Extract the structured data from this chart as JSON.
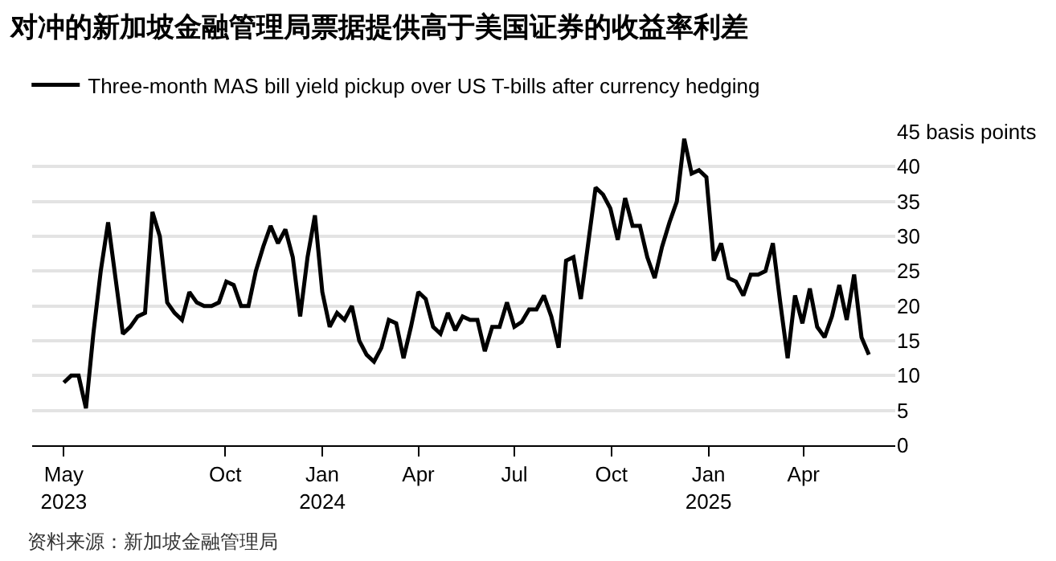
{
  "chart_data": {
    "type": "line",
    "title": "对冲的新加坡金融管理局票据提供高于美国证券的收益率利差",
    "x": [
      "2023-05-01",
      "2023-05-08",
      "2023-05-15",
      "2023-05-22",
      "2023-05-29",
      "2023-06-05",
      "2023-06-12",
      "2023-06-19",
      "2023-06-26",
      "2023-07-03",
      "2023-07-10",
      "2023-07-17",
      "2023-07-24",
      "2023-07-31",
      "2023-08-07",
      "2023-08-14",
      "2023-08-21",
      "2023-08-28",
      "2023-09-04",
      "2023-09-11",
      "2023-09-18",
      "2023-09-25",
      "2023-10-02",
      "2023-10-09",
      "2023-10-16",
      "2023-10-23",
      "2023-10-30",
      "2023-11-06",
      "2023-11-13",
      "2023-11-20",
      "2023-11-27",
      "2023-12-04",
      "2023-12-11",
      "2023-12-18",
      "2023-12-25",
      "2024-01-01",
      "2024-01-08",
      "2024-01-15",
      "2024-01-22",
      "2024-01-29",
      "2024-02-05",
      "2024-02-12",
      "2024-02-19",
      "2024-02-26",
      "2024-03-04",
      "2024-03-11",
      "2024-03-18",
      "2024-03-25",
      "2024-04-01",
      "2024-04-08",
      "2024-04-15",
      "2024-04-22",
      "2024-04-29",
      "2024-05-06",
      "2024-05-13",
      "2024-05-20",
      "2024-05-27",
      "2024-06-03",
      "2024-06-10",
      "2024-06-17",
      "2024-06-24",
      "2024-07-01",
      "2024-07-08",
      "2024-07-15",
      "2024-07-22",
      "2024-07-29",
      "2024-08-05",
      "2024-08-12",
      "2024-08-19",
      "2024-08-26",
      "2024-09-02",
      "2024-09-09",
      "2024-09-16",
      "2024-09-23",
      "2024-09-30",
      "2024-10-07",
      "2024-10-14",
      "2024-10-21",
      "2024-10-28",
      "2024-11-04",
      "2024-11-11",
      "2024-11-18",
      "2024-11-25",
      "2024-12-02",
      "2024-12-09",
      "2024-12-16",
      "2024-12-23",
      "2024-12-30",
      "2025-01-06",
      "2025-01-13",
      "2025-01-20",
      "2025-01-27",
      "2025-02-03",
      "2025-02-10",
      "2025-02-17",
      "2025-02-24",
      "2025-03-03",
      "2025-03-10",
      "2025-03-17",
      "2025-03-24",
      "2025-03-31",
      "2025-04-07",
      "2025-04-14",
      "2025-04-21",
      "2025-04-28",
      "2025-05-05",
      "2025-05-12",
      "2025-05-19",
      "2025-05-26",
      "2025-06-02"
    ],
    "series": [
      {
        "name": "Three-month MAS bill yield pickup over US T-bills after currency hedging",
        "color": "#000000",
        "values": [
          9,
          10,
          10,
          5.3,
          16,
          25,
          32,
          24,
          16,
          17,
          18.5,
          19,
          33.5,
          30,
          20.5,
          19,
          18,
          22,
          20.5,
          20,
          20,
          20.5,
          23.5,
          23,
          20,
          20,
          25,
          28.5,
          31.5,
          29,
          31,
          27,
          18.5,
          27,
          33,
          22,
          17,
          19,
          18,
          20,
          15,
          13,
          12,
          14,
          18,
          17.5,
          12.5,
          17,
          22,
          21,
          17,
          16,
          19,
          16.5,
          18.5,
          18,
          18,
          13.5,
          17,
          17,
          20.5,
          17,
          17.7,
          19.5,
          19.5,
          21.5,
          18.5,
          14,
          26.5,
          27,
          21,
          29,
          37,
          36,
          34,
          29.5,
          35.5,
          31.5,
          31.5,
          27,
          24,
          28.5,
          32,
          35,
          44,
          39,
          39.5,
          38.5,
          26.5,
          29,
          24,
          23.5,
          21.5,
          24.5,
          24.5,
          25,
          29,
          20.5,
          12.5,
          21.5,
          17.5,
          22.5,
          17,
          15.5,
          18.5,
          23,
          18,
          24.5,
          15.5,
          13
        ]
      }
    ],
    "xlim": [
      "2023-04-01",
      "2025-06-27"
    ],
    "xticks": [
      {
        "value": "2023-05-01",
        "label": "May\n2023"
      },
      {
        "value": "2023-10-01",
        "label": "Oct"
      },
      {
        "value": "2024-01-01",
        "label": "Jan\n2024"
      },
      {
        "value": "2024-04-01",
        "label": "Apr"
      },
      {
        "value": "2024-07-01",
        "label": "Jul"
      },
      {
        "value": "2024-10-01",
        "label": "Oct"
      },
      {
        "value": "2025-01-01",
        "label": "Jan\n2025"
      },
      {
        "value": "2025-04-01",
        "label": "Apr"
      }
    ],
    "ylim": [
      0,
      45
    ],
    "yticks": [
      0,
      5,
      10,
      15,
      20,
      25,
      30,
      35,
      40,
      {
        "value": 45,
        "label": "45 basis points"
      }
    ],
    "grid": "y",
    "legend": "top left",
    "marker": "none",
    "line_style": "solid",
    "annotations": [
      "资料来源：新加坡金融管理局"
    ]
  }
}
